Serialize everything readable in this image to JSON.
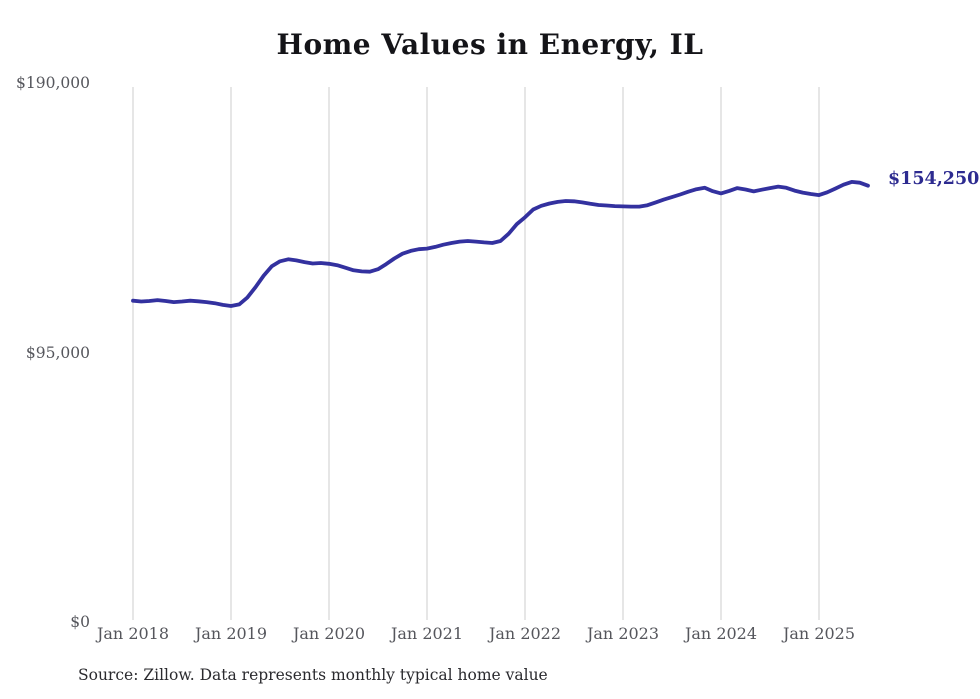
{
  "chart": {
    "title": "Home Values in Energy, IL",
    "end_label": "$154,250",
    "source": "Source: Zillow. Data represents monthly typical home value",
    "colors": {
      "line": "#33319f",
      "grid": "#cccccc",
      "axis_text": "#55565c",
      "end_label_text": "#2d2b90"
    }
  },
  "chart_data": {
    "type": "line",
    "title": "Home Values in Energy, IL",
    "ylabel": "",
    "xlabel": "",
    "ylim": [
      0,
      190000
    ],
    "grid": "vertical-only",
    "legend": "none",
    "end_annotation": "$154,250",
    "yticks": [
      {
        "label": "$190,000",
        "value": 190000
      },
      {
        "label": "$95,000",
        "value": 95000
      },
      {
        "label": "$0",
        "value": 0
      }
    ],
    "xticks": [
      "Jan 2018",
      "Jan 2019",
      "Jan 2020",
      "Jan 2021",
      "Jan 2022",
      "Jan 2023",
      "Jan 2024",
      "Jan 2025"
    ],
    "x_monthly_start": "2018-01",
    "x_monthly_end": "2025-07",
    "values": [
      113400,
      113100,
      113300,
      113600,
      113300,
      112900,
      113100,
      113400,
      113200,
      112900,
      112500,
      111900,
      111500,
      112100,
      114500,
      118200,
      122300,
      125600,
      127400,
      128100,
      127700,
      127100,
      126600,
      126800,
      126500,
      126000,
      125100,
      124200,
      123800,
      123700,
      124600,
      126400,
      128400,
      130100,
      131100,
      131700,
      131900,
      132500,
      133300,
      133900,
      134400,
      134600,
      134400,
      134100,
      133900,
      134600,
      137200,
      140600,
      143000,
      145800,
      147100,
      147900,
      148500,
      148800,
      148700,
      148300,
      147800,
      147400,
      147200,
      147000,
      146900,
      146800,
      146800,
      147300,
      148300,
      149300,
      150200,
      151100,
      152100,
      153000,
      153500,
      152300,
      151500,
      152400,
      153400,
      152900,
      152200,
      152800,
      153400,
      153900,
      153500,
      152500,
      151800,
      151300,
      150900,
      151900,
      153200,
      154600,
      155600,
      155300,
      154250
    ],
    "source": "Source: Zillow. Data represents monthly typical home value"
  }
}
